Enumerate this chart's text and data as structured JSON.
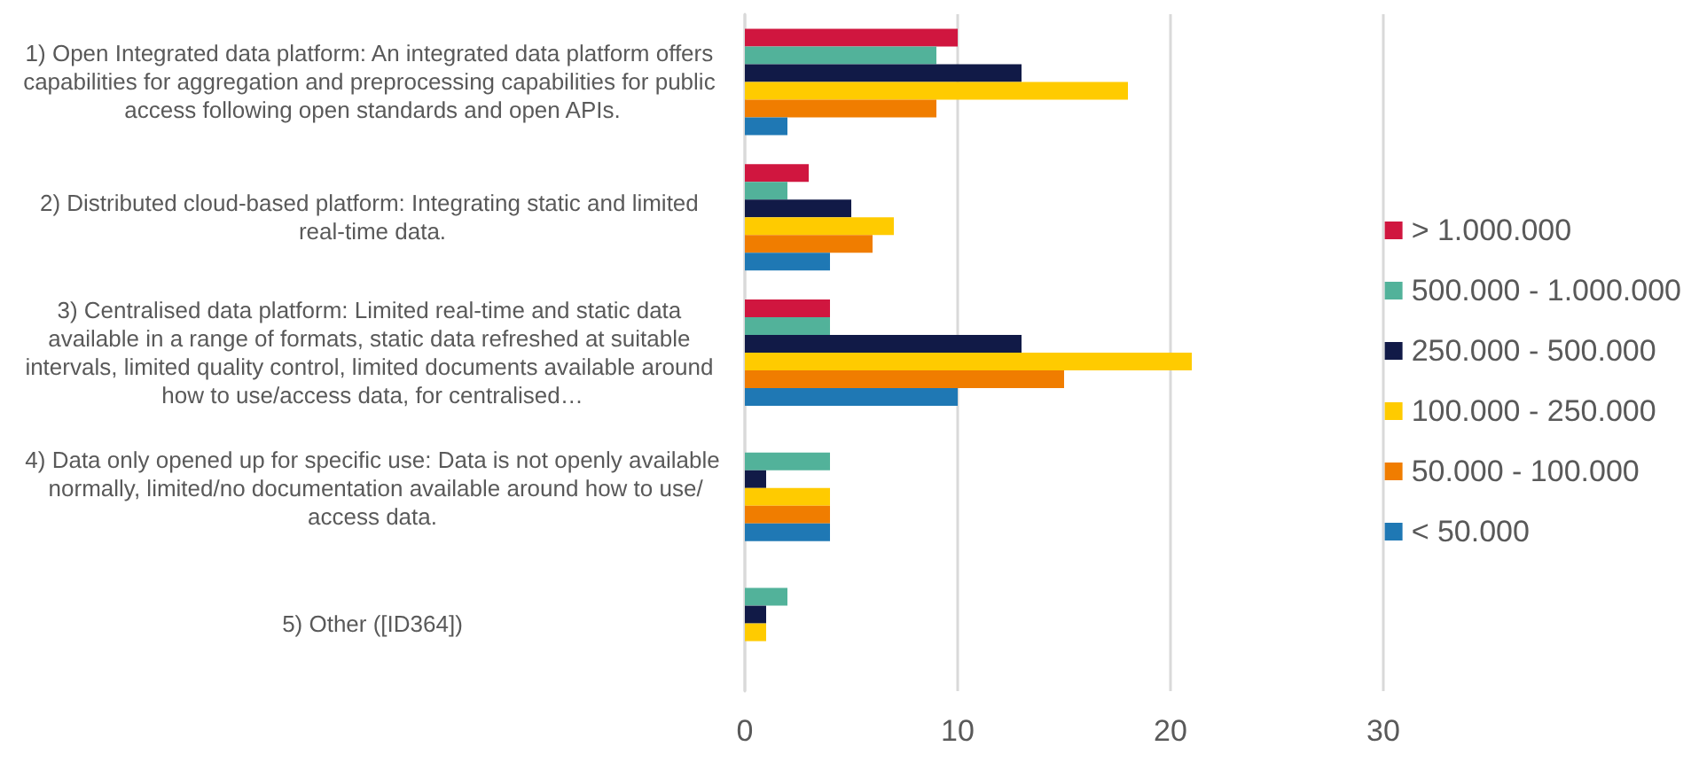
{
  "chart_data": {
    "type": "bar",
    "orientation": "horizontal",
    "categories": [
      "1) Open Integrated data platform: An integrated data platform offers capabilities for aggregation and preprocessing capabilities for public access following open standards and open APIs.",
      "2) Distributed cloud-based platform: Integrating static and limited real-time data.",
      "3) Centralised data platform: Limited real-time and static data available in a range of formats, static data refreshed at suitable intervals, limited quality control, limited documents available around how to use/access data, for centralised…",
      "4) Data only opened up for specific use: Data is not openly available normally, limited/no documentation available around how to use/access data.",
      "5) Other ([ID364])"
    ],
    "series": [
      {
        "name": "> 1.000.000",
        "color": "#d0163f",
        "values": [
          10,
          3,
          4,
          0,
          0
        ]
      },
      {
        "name": "500.000 - 1.000.000",
        "color": "#52b29a",
        "values": [
          9,
          2,
          4,
          4,
          2
        ]
      },
      {
        "name": "250.000 - 500.000",
        "color": "#111a47",
        "values": [
          13,
          5,
          13,
          1,
          1
        ]
      },
      {
        "name": "100.000 - 250.000",
        "color": "#ffcb00",
        "values": [
          18,
          7,
          21,
          4,
          1
        ]
      },
      {
        "name": "50.000 - 100.000",
        "color": "#f07d00",
        "values": [
          9,
          6,
          15,
          4,
          0
        ]
      },
      {
        "name": "< 50.000",
        "color": "#1f78b4",
        "values": [
          2,
          4,
          10,
          4,
          0
        ]
      }
    ],
    "xlim": [
      0,
      30
    ],
    "xticks": [
      0,
      10,
      20,
      30
    ],
    "grid": "x",
    "legend": "right"
  }
}
